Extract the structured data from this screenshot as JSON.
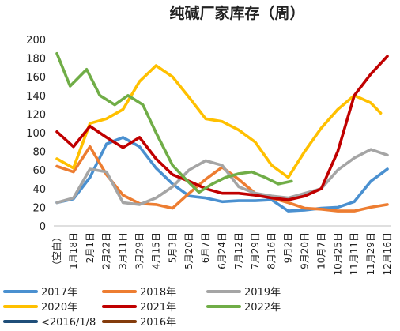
{
  "chart_data": {
    "type": "line",
    "title": "纯碱厂家库存（周）",
    "ylim": [
      0,
      200
    ],
    "yticks": [
      0,
      20,
      40,
      60,
      80,
      100,
      120,
      140,
      160,
      180,
      200
    ],
    "grid": false,
    "legend_position": "bottom",
    "x_tick_labels": [
      "（空白）",
      "1月18日",
      "2月1日",
      "2月22日",
      "3月11日",
      "3月29日",
      "4月15日",
      "5月3日",
      "5月20日",
      "6月7日",
      "6月24日",
      "7月12日",
      "7月29日",
      "8月16日",
      "9月2日",
      "9月20日",
      "10月7日",
      "10月25日",
      "11月11日",
      "11月29日",
      "12月16日"
    ],
    "series": [
      {
        "name": "2017年",
        "color": "#4a90d0",
        "x": [
          0,
          1,
          2,
          3,
          4,
          5,
          6,
          7,
          8,
          9,
          10,
          11,
          12,
          13,
          14,
          15,
          16,
          17,
          18,
          19,
          20
        ],
        "values": [
          25,
          29,
          52,
          88,
          95,
          85,
          62,
          45,
          32,
          30,
          26,
          27,
          27,
          28,
          16,
          17,
          19,
          20,
          26,
          48,
          61
        ]
      },
      {
        "name": "2018年",
        "color": "#ed7d31",
        "x": [
          0,
          1,
          2,
          3,
          4,
          5,
          6,
          7,
          8,
          9,
          10,
          11,
          12,
          13,
          14,
          15,
          16,
          17,
          18,
          19,
          20
        ],
        "values": [
          64,
          58,
          85,
          55,
          33,
          24,
          23,
          19,
          35,
          50,
          63,
          50,
          35,
          30,
          25,
          19,
          18,
          16,
          16,
          20,
          23
        ]
      },
      {
        "name": "2019年",
        "color": "#a5a5a5",
        "x": [
          0,
          1,
          2,
          3,
          4,
          5,
          6,
          7,
          8,
          9,
          10,
          11,
          12,
          13,
          14,
          15,
          16,
          17,
          18,
          19,
          20
        ],
        "values": [
          25,
          30,
          61,
          58,
          25,
          23,
          30,
          42,
          60,
          70,
          65,
          42,
          35,
          32,
          30,
          35,
          40,
          60,
          73,
          82,
          76
        ]
      },
      {
        "name": "2020年",
        "color": "#ffc000",
        "x": [
          0,
          1,
          2,
          3,
          4,
          5,
          6,
          7,
          8,
          9,
          10,
          11,
          12,
          13,
          14,
          15,
          16,
          17,
          18,
          19,
          19.6
        ],
        "values": [
          72,
          62,
          110,
          115,
          125,
          155,
          172,
          160,
          138,
          115,
          112,
          103,
          90,
          65,
          52,
          80,
          105,
          125,
          140,
          132,
          121
        ]
      },
      {
        "name": "2021年",
        "color": "#c00000",
        "x": [
          0,
          1,
          2,
          3,
          4,
          5,
          6,
          7,
          8,
          9,
          10,
          11,
          12,
          13,
          14,
          15,
          16,
          17,
          18,
          19,
          20
        ],
        "values": [
          101,
          85,
          107,
          95,
          84,
          95,
          72,
          55,
          48,
          40,
          35,
          35,
          33,
          30,
          28,
          32,
          40,
          80,
          140,
          163,
          182
        ]
      },
      {
        "name": "2022年",
        "color": "#70ad47",
        "x": [
          0,
          0.8,
          1.8,
          2.6,
          3.5,
          4.3,
          5.2,
          6.0,
          7.0,
          7.8,
          8.6,
          9.4,
          10.2,
          11.0,
          11.8,
          12.6,
          13.4,
          14.2
        ],
        "values": [
          185,
          150,
          168,
          140,
          130,
          140,
          130,
          100,
          65,
          50,
          36,
          45,
          52,
          56,
          58,
          52,
          45,
          48
        ]
      },
      {
        "name": "<2016/1/8",
        "color": "#1f4e79",
        "x": [],
        "values": []
      },
      {
        "name": "2016年",
        "color": "#843c0c",
        "x": [],
        "values": []
      }
    ]
  }
}
